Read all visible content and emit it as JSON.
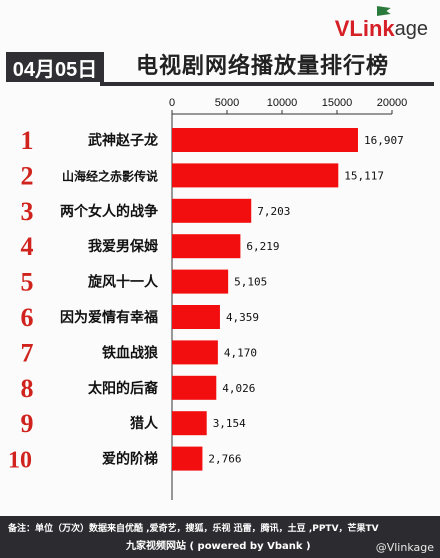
{
  "brand": {
    "v": "V",
    "link": "Link",
    "age": "age"
  },
  "header": {
    "date": "04月05日",
    "title": "电视剧网络播放量排行榜"
  },
  "chart_data": {
    "type": "bar",
    "orientation": "horizontal",
    "title": "电视剧网络播放量排行榜",
    "ranks": [
      "1",
      "2",
      "3",
      "4",
      "5",
      "6",
      "7",
      "8",
      "9",
      "10"
    ],
    "categories": [
      "武神赵子龙",
      "山海经之赤影传说",
      "两个女人的战争",
      "我爱男保姆",
      "旋风十一人",
      "因为爱情有幸福",
      "铁血战狼",
      "太阳的后裔",
      "猎人",
      "爱的阶梯"
    ],
    "values": [
      16907,
      15117,
      7203,
      6219,
      5105,
      4359,
      4170,
      4026,
      3154,
      2766
    ],
    "value_labels": [
      "16,907",
      "15,117",
      "7,203",
      "6,219",
      "5,105",
      "4,359",
      "4,170",
      "4,026",
      "3,154",
      "2,766"
    ],
    "xlim": [
      0,
      20000
    ],
    "xticks": [
      0,
      5000,
      10000,
      15000,
      20000
    ],
    "xtick_labels": [
      "0",
      "5000",
      "10000",
      "15000",
      "20000"
    ],
    "axis_position": "top",
    "bar_color": "#f20e0e",
    "rank_color": "#d0231e",
    "grid": false
  },
  "footer": {
    "note": "备注：单位（万次）数据来自优酷 ,爱奇艺，搜狐，乐视  迅雷，腾讯，土豆 ,PPTV，芒果TV",
    "source": "九家视频网站    ( powered by Vbank )",
    "watermark": "@Vlinkage"
  }
}
